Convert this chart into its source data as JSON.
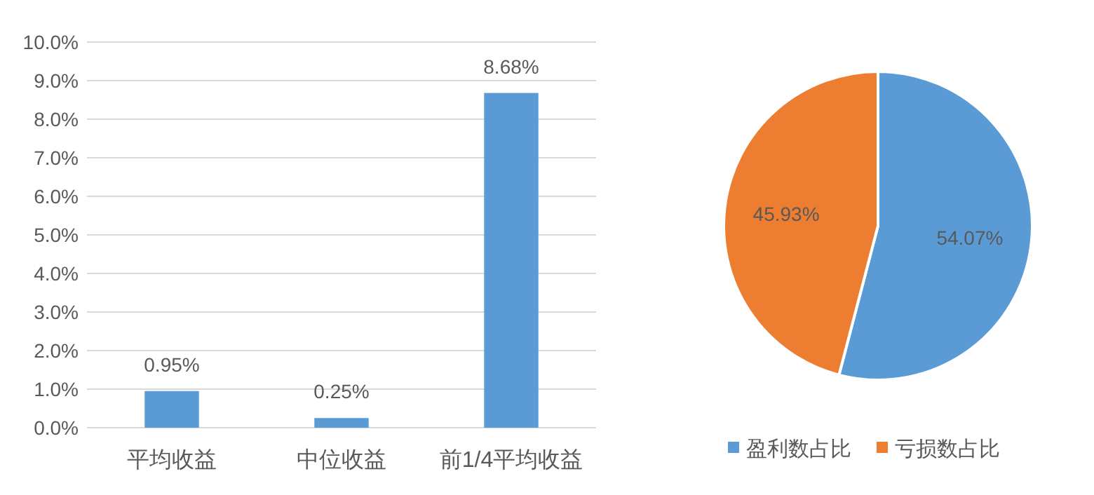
{
  "chart_data": [
    {
      "type": "bar",
      "categories": [
        "平均收益",
        "中位收益",
        "前1/4平均收益"
      ],
      "values": [
        0.95,
        0.25,
        8.68
      ],
      "color": "#5b9bd5",
      "value_labels": [
        "0.95%",
        "0.25%",
        "8.68%"
      ],
      "ylim": [
        0,
        10
      ],
      "yticks": [
        {
          "value": 0,
          "label": "0.0%"
        },
        {
          "value": 1,
          "label": "1.0%"
        },
        {
          "value": 2,
          "label": "2.0%"
        },
        {
          "value": 3,
          "label": "3.0%"
        },
        {
          "value": 4,
          "label": "4.0%"
        },
        {
          "value": 5,
          "label": "5.0%"
        },
        {
          "value": 6,
          "label": "6.0%"
        },
        {
          "value": 7,
          "label": "7.0%"
        },
        {
          "value": 8,
          "label": "8.0%"
        },
        {
          "value": 9,
          "label": "9.0%"
        },
        {
          "value": 10,
          "label": "10.0%"
        }
      ],
      "grid": "y"
    },
    {
      "type": "pie",
      "categories": [
        "盈利数占比",
        "亏损数占比"
      ],
      "values": [
        54.07,
        45.93
      ],
      "colors": [
        "#5b9bd5",
        "#ed7d31"
      ],
      "value_labels": [
        "54.07%",
        "45.93%"
      ],
      "legend": "bottom"
    }
  ]
}
